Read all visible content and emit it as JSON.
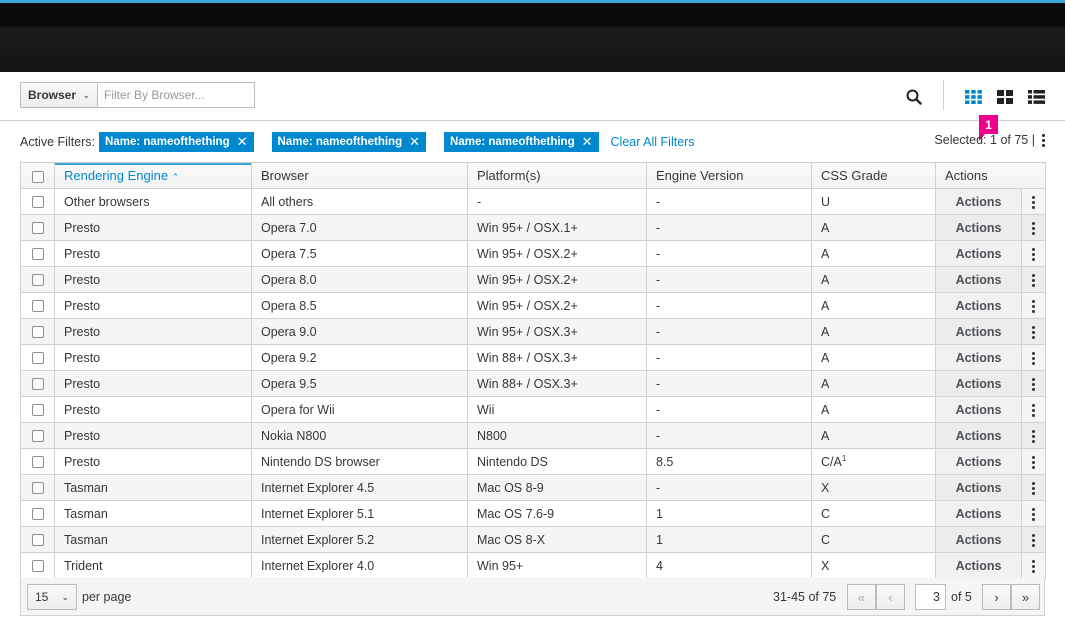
{
  "filter": {
    "field_label": "Browser",
    "placeholder": "Filter By Browser..."
  },
  "active_filters": {
    "label": "Active Filters:",
    "chips": [
      "Name: nameofthething",
      "Name: nameofthething",
      "Name: nameofthething"
    ],
    "clear_label": "Clear All Filters"
  },
  "selection": {
    "label": "Selected:",
    "count": "1",
    "of_label": "of 75",
    "sep": "|"
  },
  "badge": "1",
  "columns": [
    "Rendering Engine",
    "Browser",
    "Platform(s)",
    "Engine Version",
    "CSS Grade",
    "Actions"
  ],
  "action_label": "Actions",
  "rows": [
    [
      "Other browsers",
      "All others",
      "-",
      "-",
      "U"
    ],
    [
      "Presto",
      "Opera 7.0",
      "Win 95+ / OSX.1+",
      "-",
      "A"
    ],
    [
      "Presto",
      "Opera 7.5",
      "Win 95+ / OSX.2+",
      "-",
      "A"
    ],
    [
      "Presto",
      "Opera 8.0",
      "Win 95+ / OSX.2+",
      "-",
      "A"
    ],
    [
      "Presto",
      "Opera 8.5",
      "Win 95+ / OSX.2+",
      "-",
      "A"
    ],
    [
      "Presto",
      "Opera 9.0",
      "Win 95+ / OSX.3+",
      "-",
      "A"
    ],
    [
      "Presto",
      "Opera 9.2",
      "Win 88+ / OSX.3+",
      "-",
      "A"
    ],
    [
      "Presto",
      "Opera 9.5",
      "Win 88+ / OSX.3+",
      "-",
      "A"
    ],
    [
      "Presto",
      "Opera for Wii",
      "Wii",
      "-",
      "A"
    ],
    [
      "Presto",
      "Nokia N800",
      "N800",
      "-",
      "A"
    ],
    [
      "Presto",
      "Nintendo DS browser",
      "Nintendo DS",
      "8.5",
      "C/A"
    ],
    [
      "Tasman",
      "Internet Explorer 4.5",
      "Mac OS 8-9",
      "-",
      "X"
    ],
    [
      "Tasman",
      "Internet Explorer 5.1",
      "Mac OS 7.6-9",
      "1",
      "C"
    ],
    [
      "Tasman",
      "Internet Explorer 5.2",
      "Mac OS 8-X",
      "1",
      "C"
    ],
    [
      "Trident",
      "Internet Explorer 4.0",
      "Win 95+",
      "4",
      "X"
    ]
  ],
  "footnote_mark": "1",
  "pagination": {
    "per_page_value": "15",
    "per_page_label": "per page",
    "range": "31-45 of 75",
    "page_value": "3",
    "of_pages": "of 5"
  },
  "icons": {
    "search": "search-icon",
    "card_view": "card-view-icon",
    "tile_view": "tile-view-icon",
    "list_view": "list-view-icon"
  },
  "colors": {
    "accent": "#0088ce",
    "badge": "#ec008c",
    "topbar": "#141414"
  }
}
